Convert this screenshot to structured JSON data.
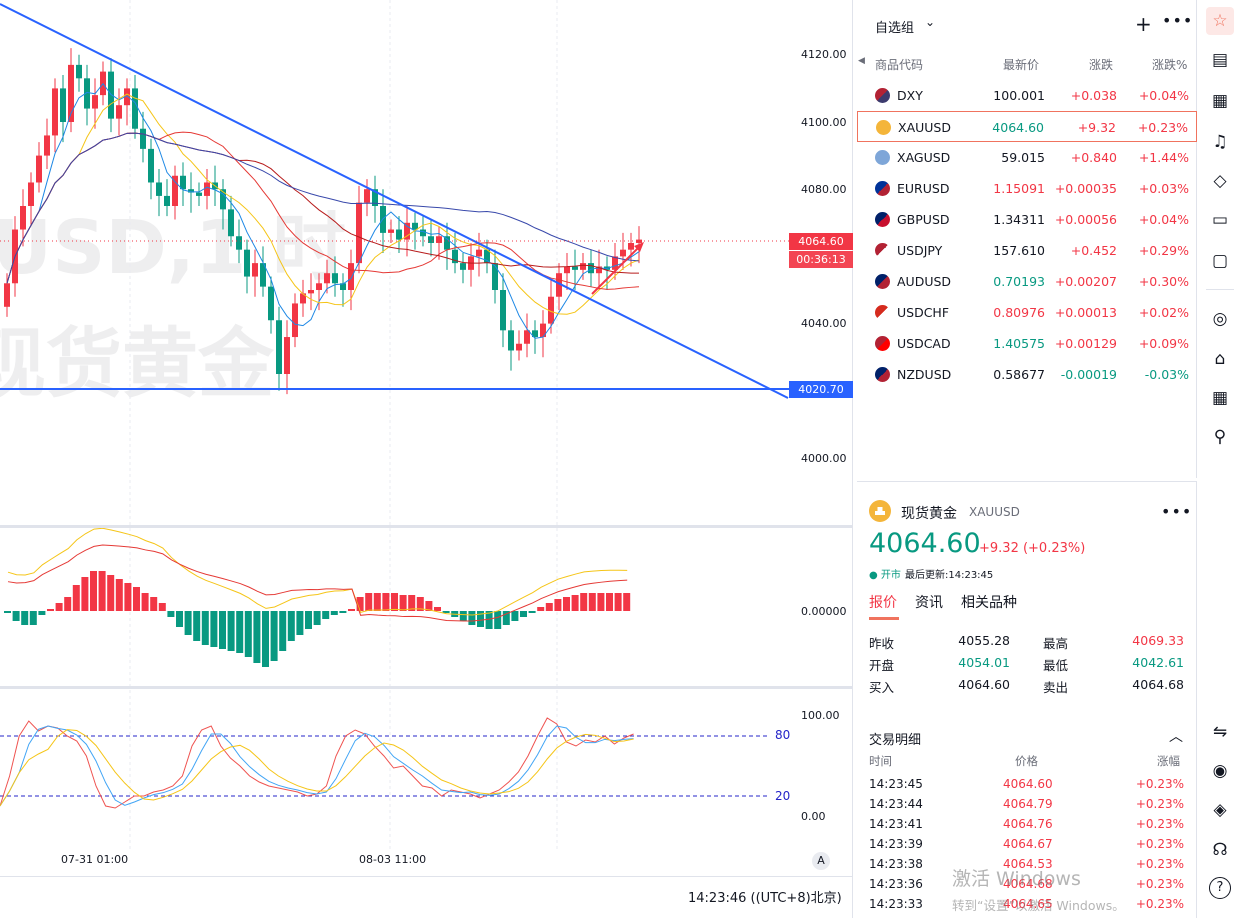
{
  "chart": {
    "watermark_symbol": "USD,1 时",
    "watermark_name": "现货黄金",
    "price_axis": [
      "4120.00",
      "4100.00",
      "4080.00",
      "4040.00",
      "4000.00"
    ],
    "current_price_tag": "4064.60",
    "countdown_tag": "00:36:13",
    "support_tag": "4020.70",
    "macd_zero": "0.00000",
    "stoch_axis": [
      "100.00",
      "0.00"
    ],
    "stoch_levels": [
      "80",
      "20"
    ],
    "time_axis": [
      "07-31 01:00",
      "08-03 11:00"
    ],
    "auto_scale": "A",
    "clock": "14:23:46 ((UTC+8)北京)",
    "colors": {
      "up": "#f23645",
      "down": "#089981",
      "trendline": "#2962ff"
    }
  },
  "watchlist": {
    "title": "自选组",
    "columns": {
      "symbol": "商品代码",
      "last": "最新价",
      "change": "涨跌",
      "change_pct": "涨跌%"
    },
    "rows": [
      {
        "symbol": "DXY",
        "last": "100.001",
        "change": "+0.038",
        "change_pct": "+0.04%",
        "flag": "flag-us-icon"
      },
      {
        "symbol": "XAUUSD",
        "last": "4064.60",
        "change": "+9.32",
        "change_pct": "+0.23%",
        "flag": "gold-bars-icon"
      },
      {
        "symbol": "XAGUSD",
        "last": "59.015",
        "change": "+0.840",
        "change_pct": "+1.44%",
        "flag": "silver-bars-icon"
      },
      {
        "symbol": "EURUSD",
        "last": "1.15091",
        "change": "+0.00035",
        "change_pct": "+0.03%",
        "flag": "flag-eu-us-icon"
      },
      {
        "symbol": "GBPUSD",
        "last": "1.34311",
        "change": "+0.00056",
        "change_pct": "+0.04%",
        "flag": "flag-gb-us-icon"
      },
      {
        "symbol": "USDJPY",
        "last": "157.610",
        "change": "+0.452",
        "change_pct": "+0.29%",
        "flag": "flag-us-jp-icon"
      },
      {
        "symbol": "AUDUSD",
        "last": "0.70193",
        "change": "+0.00207",
        "change_pct": "+0.30%",
        "flag": "flag-au-us-icon"
      },
      {
        "symbol": "USDCHF",
        "last": "0.80976",
        "change": "+0.00013",
        "change_pct": "+0.02%",
        "flag": "flag-us-ch-icon"
      },
      {
        "symbol": "USDCAD",
        "last": "1.40575",
        "change": "+0.00129",
        "change_pct": "+0.09%",
        "flag": "flag-us-ca-icon"
      },
      {
        "symbol": "NZDUSD",
        "last": "0.58677",
        "change": "-0.00019",
        "change_pct": "-0.03%",
        "flag": "flag-nz-us-icon"
      }
    ]
  },
  "details": {
    "name": "现货黄金",
    "code": "XAUUSD",
    "price": "4064.60",
    "change": "+9.32 (+0.23%)",
    "status": "● 开市",
    "updated": "最后更新:14:23:45",
    "tabs": [
      "报价",
      "资讯",
      "相关品种"
    ],
    "quote": {
      "prev_close_label": "昨收",
      "prev_close": "4055.28",
      "high_label": "最高",
      "high": "4069.33",
      "open_label": "开盘",
      "open": "4054.01",
      "low_label": "最低",
      "low": "4042.61",
      "bid_label": "买入",
      "bid": "4064.60",
      "ask_label": "卖出",
      "ask": "4064.68"
    },
    "trades": {
      "title": "交易明细",
      "headers": [
        "时间",
        "价格",
        "涨幅"
      ],
      "rows": [
        {
          "time": "14:23:45",
          "price": "4064.60",
          "pct": "+0.23%"
        },
        {
          "time": "14:23:44",
          "price": "4064.79",
          "pct": "+0.23%"
        },
        {
          "time": "14:23:41",
          "price": "4064.76",
          "pct": "+0.23%"
        },
        {
          "time": "14:23:39",
          "price": "4064.67",
          "pct": "+0.23%"
        },
        {
          "time": "14:23:38",
          "price": "4064.53",
          "pct": "+0.23%"
        },
        {
          "time": "14:23:36",
          "price": "4064.68",
          "pct": "+0.23%"
        },
        {
          "time": "14:23:33",
          "price": "4064.65",
          "pct": "+0.23%"
        }
      ]
    }
  },
  "system_watermark": {
    "line1": "激活 Windows",
    "line2": "转到“设置”以激活 Windows。"
  },
  "toolbar_icons": [
    "watchlist-icon",
    "document-icon",
    "calendar-icon",
    "alert-bell-icon",
    "layers-icon",
    "video-icon",
    "chat-icon",
    "target-icon",
    "education-icon",
    "table-icon",
    "network-icon",
    "dom-icon",
    "eye-icon",
    "hand-shake-icon",
    "headset-icon",
    "help-icon"
  ]
}
